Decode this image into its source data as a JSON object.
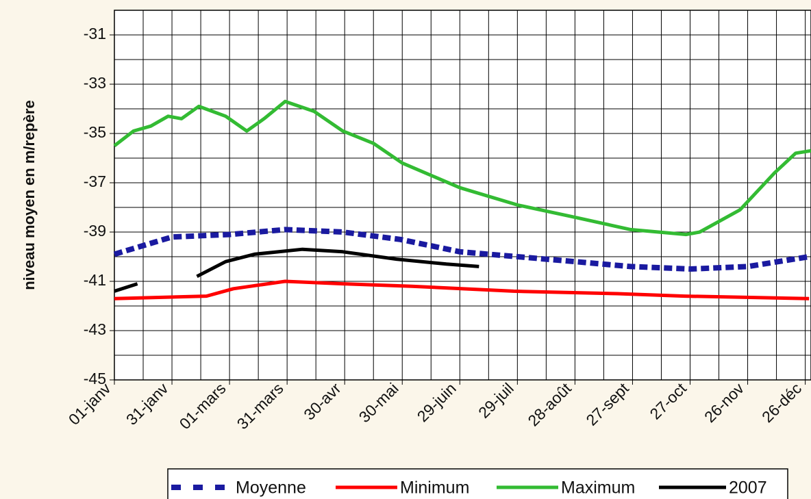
{
  "chart_data": {
    "type": "line",
    "y_label": "niveau moyen en m/repère",
    "xlim": [
      0,
      363
    ],
    "xticks": [
      {
        "value": 0,
        "label": "01-janv"
      },
      {
        "value": 30,
        "label": "31-janv"
      },
      {
        "value": 60,
        "label": "01-mars"
      },
      {
        "value": 90,
        "label": "31-mars"
      },
      {
        "value": 120,
        "label": "30-avr"
      },
      {
        "value": 150,
        "label": "30-mai"
      },
      {
        "value": 180,
        "label": "29-juin"
      },
      {
        "value": 210,
        "label": "29-juil"
      },
      {
        "value": 240,
        "label": "28-août"
      },
      {
        "value": 270,
        "label": "27-sept"
      },
      {
        "value": 300,
        "label": "27-oct"
      },
      {
        "value": 330,
        "label": "26-nov"
      },
      {
        "value": 360,
        "label": "26-déc"
      }
    ],
    "x_minor_ticks": [
      15,
      45,
      75,
      105,
      135,
      165,
      195,
      225,
      255,
      285,
      315,
      345
    ],
    "ylim": [
      -45,
      -30
    ],
    "yticks": [
      -45,
      -43,
      -41,
      -39,
      -37,
      -35,
      -33,
      -31
    ],
    "y_minor_ticks": [
      -44,
      -42,
      -40,
      -38,
      -36,
      -34,
      -32
    ],
    "grid": true,
    "hlines": [
      -44
    ],
    "legend": "bottom",
    "series": [
      {
        "name": "Moyenne",
        "color": "#1a1aa0",
        "dash": true,
        "x": [
          0,
          30,
          60,
          89,
          119,
          149,
          180,
          210,
          240,
          269,
          300,
          330,
          362
        ],
        "values": [
          -39.9,
          -39.2,
          -39.1,
          -38.9,
          -39.0,
          -39.3,
          -39.8,
          -40.0,
          -40.2,
          -40.4,
          -40.5,
          -40.4,
          -40.0
        ]
      },
      {
        "name": "Minimum",
        "color": "#ff0000",
        "x": [
          0,
          48,
          62,
          89,
          119,
          155,
          208,
          262,
          297,
          362
        ],
        "values": [
          -41.7,
          -41.6,
          -41.3,
          -41.0,
          -41.1,
          -41.2,
          -41.4,
          -41.5,
          -41.6,
          -41.7
        ]
      },
      {
        "name": "Maximum",
        "color": "#33bb33",
        "x": [
          0,
          10,
          19,
          28,
          35,
          44,
          58,
          69,
          78,
          89,
          104,
          119,
          135,
          150,
          180,
          210,
          240,
          269,
          298,
          305,
          326,
          344,
          355,
          363
        ],
        "values": [
          -35.5,
          -34.9,
          -34.7,
          -34.3,
          -34.4,
          -33.9,
          -34.3,
          -34.9,
          -34.4,
          -33.7,
          -34.1,
          -34.9,
          -35.4,
          -36.2,
          -37.2,
          -37.9,
          -38.4,
          -38.9,
          -39.1,
          -39.0,
          -38.1,
          -36.6,
          -35.8,
          -35.7
        ]
      },
      {
        "name": "2007",
        "color": "#000000",
        "x": [
          0,
          12,
          27,
          43,
          58,
          73,
          98,
          119,
          147,
          173,
          190
        ],
        "values": [
          -41.4,
          -41.1,
          null,
          -40.8,
          -40.2,
          -39.9,
          -39.7,
          -39.8,
          -40.1,
          -40.3,
          -40.4
        ]
      }
    ]
  }
}
